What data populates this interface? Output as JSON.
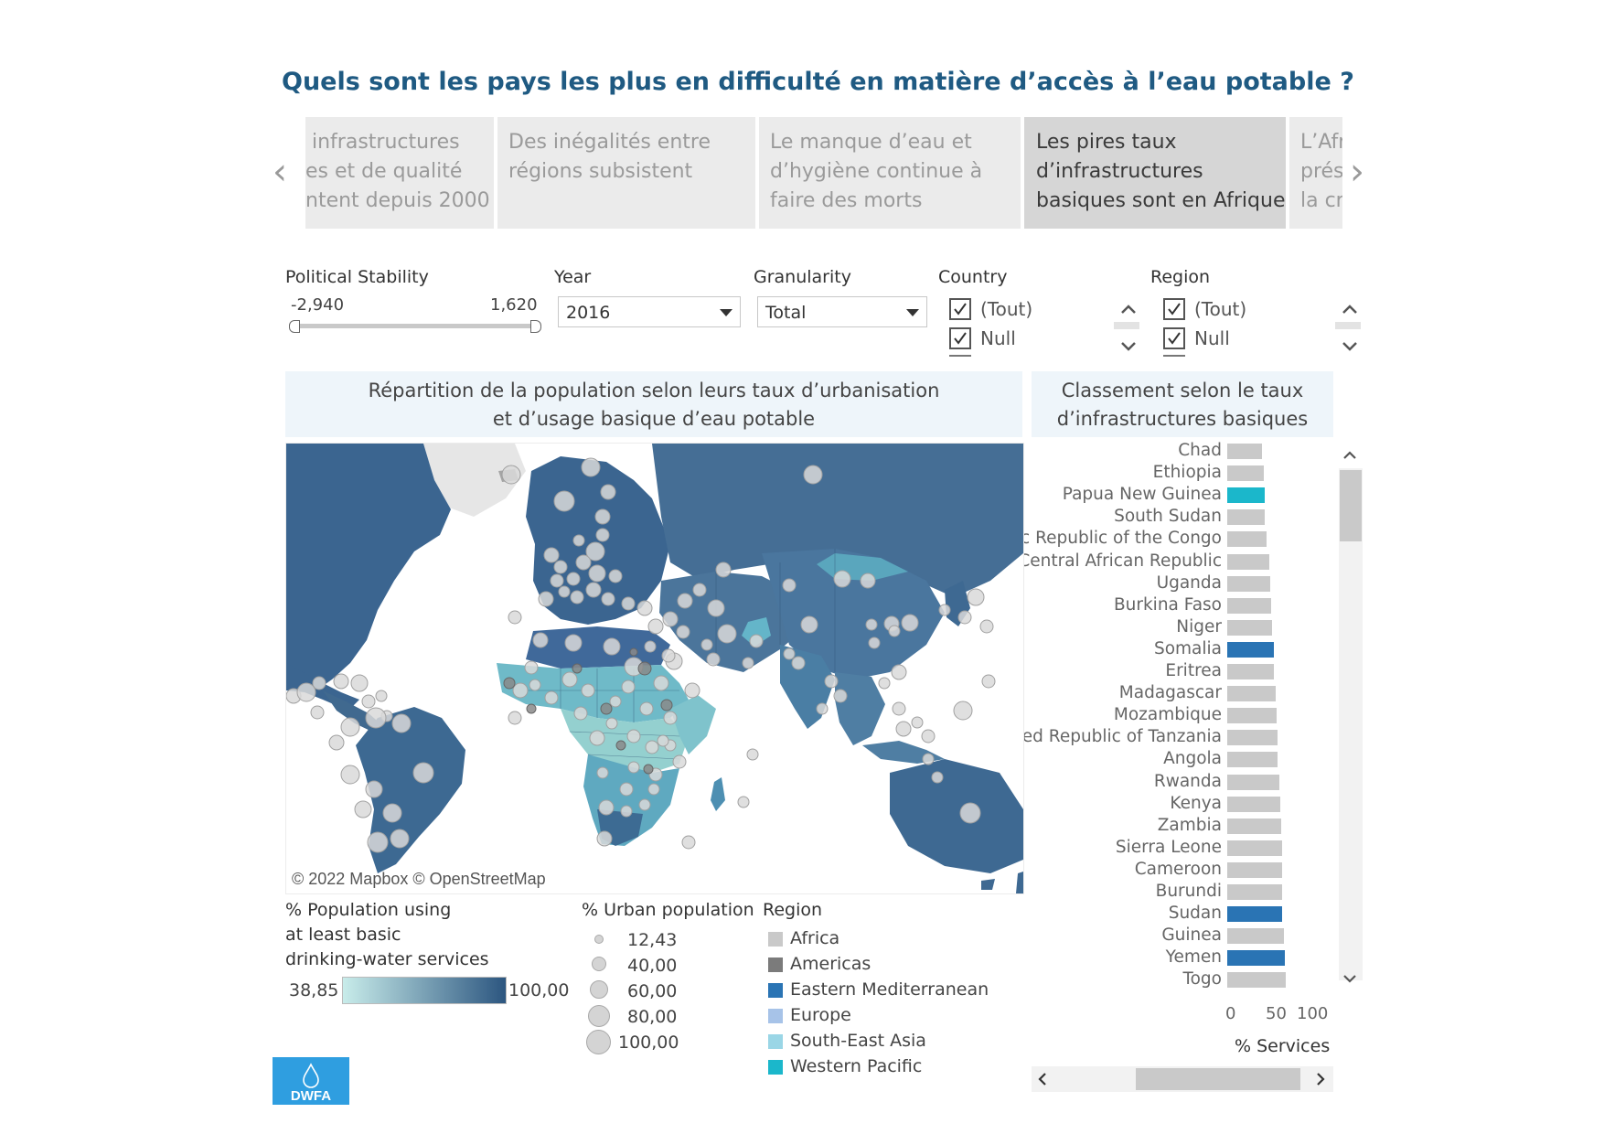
{
  "title": "Quels sont les pays les plus en difficulté en matière d’accès à l’eau potable ?",
  "story_points": [
    {
      "label": " infrastructures\nes et de qualité\nntent depuis 2000",
      "active": false
    },
    {
      "label": "Des inégalités entre\nrégions subsistent",
      "active": false
    },
    {
      "label": "Le manque d’eau et\nd’hygiène continue à\nfaire des morts",
      "active": false
    },
    {
      "label": "Les pires taux\nd’infrastructures\nbasiques sont en Afrique",
      "active": true
    },
    {
      "label": "L’Afr\nprés\nla cr",
      "active": false
    }
  ],
  "filters": {
    "political_stability": {
      "label": "Political Stability",
      "min": "-2,940",
      "max": "1,620"
    },
    "year": {
      "label": "Year",
      "value": "2016"
    },
    "granularity": {
      "label": "Granularity",
      "value": "Total"
    },
    "country": {
      "label": "Country",
      "items": [
        "(Tout)",
        "Null"
      ]
    },
    "region": {
      "label": "Region",
      "items": [
        "(Tout)",
        "Null"
      ]
    }
  },
  "map_panel": {
    "title_line1": "Répartition de la population selon leurs taux d’urbanisation",
    "title_line2": "et d’usage basique d’eau potable",
    "copyright": "© 2022 Mapbox © OpenStreetMap"
  },
  "ranking_panel": {
    "title_line1": "Classement selon le taux",
    "title_line2": "d’infrastructures basiques",
    "axis_ticks": [
      "0",
      "50",
      "100"
    ],
    "axis_title": "% Services"
  },
  "chart_data": {
    "type": "bar",
    "orientation": "horizontal",
    "title": "Classement selon le taux d’infrastructures basiques",
    "xlabel": "% Services",
    "xlim": [
      0,
      100
    ],
    "categories": [
      "Chad",
      "Ethiopia",
      "Papua New Guinea",
      "South Sudan",
      "Democratic Republic of the Congo",
      "Central African Republic",
      "Uganda",
      "Burkina Faso",
      "Niger",
      "Somalia",
      "Eritrea",
      "Madagascar",
      "Mozambique",
      "United Republic of Tanzania",
      "Angola",
      "Rwanda",
      "Kenya",
      "Zambia",
      "Sierra Leone",
      "Cameroon",
      "Burundi",
      "Sudan",
      "Guinea",
      "Yemen",
      "Togo"
    ],
    "values": [
      39,
      41,
      42,
      42,
      44,
      47,
      48,
      49,
      50,
      52,
      52,
      54,
      55,
      56,
      56,
      58,
      59,
      60,
      61,
      61,
      61,
      61,
      63,
      64,
      65
    ],
    "bar_regions": [
      "Africa",
      "Africa",
      "Western Pacific",
      "Africa",
      "Africa",
      "Africa",
      "Africa",
      "Africa",
      "Africa",
      "Eastern Mediterranean",
      "Africa",
      "Africa",
      "Africa",
      "Africa",
      "Africa",
      "Africa",
      "Africa",
      "Africa",
      "Africa",
      "Africa",
      "Africa",
      "Eastern Mediterranean",
      "Africa",
      "Eastern Mediterranean",
      "Africa"
    ],
    "region_colors": {
      "Africa": "#c9c9c9",
      "Americas": "#7b7b7b",
      "Eastern Mediterranean": "#2a74b4",
      "Europe": "#a7c3e8",
      "South-East Asia": "#9ad6e6",
      "Western Pacific": "#1bb7cb"
    }
  },
  "legend_water": {
    "title": [
      "% Population using",
      "at least basic",
      "drinking-water services"
    ],
    "min": "38,85",
    "max": "100,00",
    "color_low": "#c8ecea",
    "color_high": "#2c5680"
  },
  "legend_urban": {
    "title": "% Urban population",
    "items": [
      "12,43",
      "40,00",
      "60,00",
      "80,00",
      "100,00"
    ]
  },
  "legend_region": {
    "title": "Region",
    "items": [
      {
        "label": "Africa",
        "color": "#c9c9c9"
      },
      {
        "label": "Americas",
        "color": "#7b7b7b"
      },
      {
        "label": "Eastern Mediterranean",
        "color": "#2a74b4"
      },
      {
        "label": "Europe",
        "color": "#a7c3e8"
      },
      {
        "label": "South-East Asia",
        "color": "#9ad6e6"
      },
      {
        "label": "Western Pacific",
        "color": "#1bb7cb"
      }
    ]
  },
  "logo": {
    "text": "DWFA",
    "color": "#2f9ee0"
  }
}
